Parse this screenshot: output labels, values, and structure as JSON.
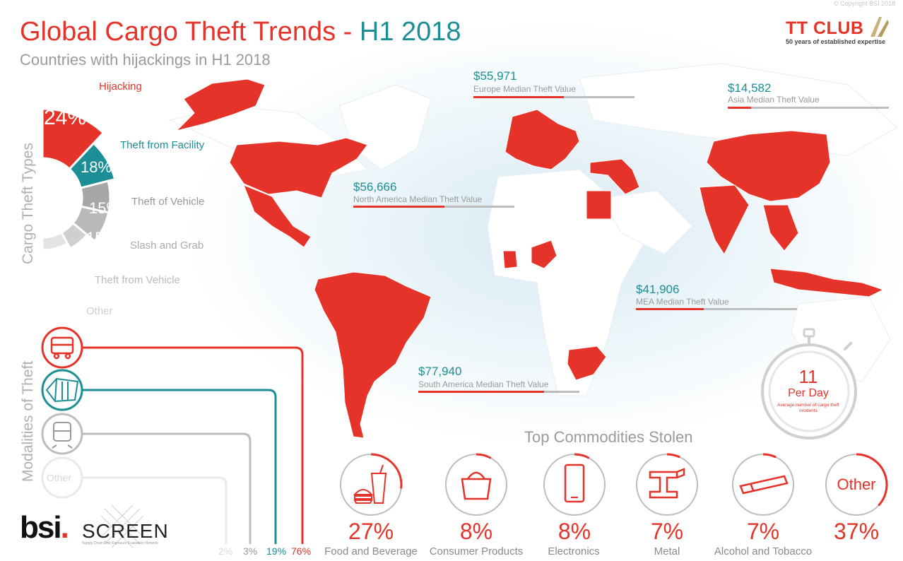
{
  "header": {
    "title_main": "Global Cargo Theft Trends",
    "title_sep": " - ",
    "title_period": "H1 2018",
    "subtitle": "Countries with hijackings in H1 2018",
    "copyright": "© Copyright BSI 2018"
  },
  "brand": {
    "name": "TT CLUB",
    "tagline": "50 years of established expertise"
  },
  "footer_brand": {
    "bsi": "bsi",
    "bsi_dot": ".",
    "screen": "SCREEN",
    "screen_tag": "Supply Chain Risk Exposure Evaluation Network"
  },
  "colors": {
    "accent": "#e63329",
    "teal": "#1b8e96",
    "grey": "#a7a7a7",
    "light_grey": "#d9d9d9"
  },
  "chart_data": [
    {
      "type": "pie",
      "title": "Cargo Theft Types",
      "slices": [
        {
          "label": "Hijacking",
          "value": 24,
          "display": "24%",
          "color": "#e63329"
        },
        {
          "label": "Theft from Facility",
          "value": 18,
          "display": "18%",
          "color": "#1b8e96"
        },
        {
          "label": "Theft of Vehicle",
          "value": 15,
          "display": "15%",
          "color": "#a7a7a7"
        },
        {
          "label": "Slash and Grab",
          "value": 15,
          "display": "15%",
          "color": "#b9b9b9"
        },
        {
          "label": "Theft from Vehicle",
          "value": 12,
          "display": "12%",
          "color": "#cfcfcf"
        },
        {
          "label": "Other",
          "value": 16,
          "display": "16%",
          "color": "#e4e4e4"
        }
      ]
    },
    {
      "type": "bar",
      "title": "Median Theft Value",
      "categories": [
        "Europe",
        "Asia",
        "North America",
        "MEA",
        "South America"
      ],
      "values": [
        55971,
        14582,
        56666,
        41906,
        77940
      ],
      "labels": [
        "$55,971",
        "$14,582",
        "$56,666",
        "$41,906",
        "$77,940"
      ],
      "captions": [
        "Europe Median Theft Value",
        "Asia Median Theft Value",
        "North America Median Theft Value",
        "MEA Median Theft Value",
        "South America Median Theft Value"
      ],
      "max": 100000
    },
    {
      "type": "bar",
      "title": "Modalities of Theft",
      "categories": [
        "Road",
        "Facility",
        "Rail",
        "Other"
      ],
      "values": [
        76,
        19,
        3,
        2
      ],
      "labels": [
        "76%",
        "19%",
        "3%",
        "2%"
      ]
    },
    {
      "type": "pie",
      "title": "Top Commodities Stolen",
      "categories": [
        "Food and Beverage",
        "Consumer Products",
        "Electronics",
        "Metal",
        "Alcohol and Tobacco",
        "Other"
      ],
      "values": [
        27,
        8,
        8,
        7,
        7,
        37
      ],
      "labels": [
        "27%",
        "8%",
        "8%",
        "7%",
        "7%",
        "37%"
      ]
    }
  ],
  "pie_labels": {
    "hijacking": "Hijacking",
    "facility": "Theft from Facility",
    "vehicle": "Theft of Vehicle",
    "slash": "Slash and Grab",
    "from_vehicle": "Theft from Vehicle",
    "other": "Other",
    "pct_hijacking": "24%",
    "pct_facility": "18%",
    "pct_vehicle": "15%",
    "pct_slash": "15%",
    "pct_from_vehicle": "12%",
    "pct_other": "16%"
  },
  "side_titles": {
    "types": "Cargo Theft Types",
    "modalities": "Modalities of Theft"
  },
  "modalities": {
    "other_label": "Other",
    "pct_road": "76%",
    "pct_facility": "19%",
    "pct_rail": "3%",
    "pct_other": "2%"
  },
  "map_values": {
    "europe_value": "$55,971",
    "europe_caption": "Europe Median Theft Value",
    "asia_value": "$14,582",
    "asia_caption": "Asia Median Theft Value",
    "na_value": "$56,666",
    "na_caption": "North America Median Theft Value",
    "mea_value": "$41,906",
    "mea_caption": "MEA Median Theft Value",
    "sa_value": "$77,940",
    "sa_caption": "South America Median Theft Value"
  },
  "per_day": {
    "number": "11",
    "unit": "Per Day",
    "description": "Average number of cargo theft incidents"
  },
  "commodities": {
    "title": "Top Commodities Stolen",
    "items": [
      {
        "name": "Food and Beverage",
        "pct": "27%"
      },
      {
        "name": "Consumer Products",
        "pct": "8%"
      },
      {
        "name": "Electronics",
        "pct": "8%"
      },
      {
        "name": "Metal",
        "pct": "7%"
      },
      {
        "name": "Alcohol and Tobacco",
        "pct": "7%"
      },
      {
        "name": "Other",
        "pct": "37%"
      }
    ]
  }
}
